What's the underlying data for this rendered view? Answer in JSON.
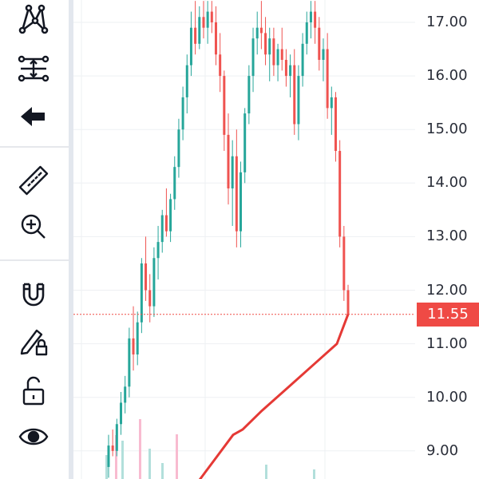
{
  "toolbar": {
    "groups": [
      [
        "pattern-tool-icon",
        "measure-settings-icon",
        "arrow-left-icon"
      ],
      [
        "ruler-icon",
        "zoom-in-icon"
      ],
      [
        "magnet-icon",
        "lock-drawings-icon",
        "unlock-icon",
        "eye-icon"
      ]
    ]
  },
  "price_axis": {
    "ticks": [
      "17.00",
      "16.00",
      "15.00",
      "14.00",
      "13.00",
      "12.00",
      "11.00",
      "10.00",
      "9.00"
    ],
    "current_price": "11.55"
  },
  "colors": {
    "up": "#26a69a",
    "down": "#ef5350",
    "line": "#e53935",
    "badge": "#ef4a45",
    "grid": "#eef0f3"
  },
  "chart_data": {
    "type": "candlestick",
    "y_range": [
      8.5,
      17.4
    ],
    "current_price": 11.55,
    "candles": [
      [
        8.7,
        9.3,
        8.5,
        9.1
      ],
      [
        9.1,
        9.4,
        8.9,
        9.0
      ],
      [
        9.0,
        9.6,
        8.9,
        9.5
      ],
      [
        9.5,
        10.1,
        9.3,
        9.9
      ],
      [
        9.9,
        10.4,
        9.7,
        10.2
      ],
      [
        10.2,
        11.3,
        10.0,
        11.1
      ],
      [
        11.1,
        11.7,
        10.5,
        10.8
      ],
      [
        10.8,
        11.6,
        10.6,
        11.4
      ],
      [
        11.4,
        12.6,
        11.2,
        12.5
      ],
      [
        12.5,
        13.0,
        11.8,
        12.0
      ],
      [
        12.0,
        12.3,
        11.4,
        11.7
      ],
      [
        11.7,
        12.8,
        11.5,
        12.6
      ],
      [
        12.6,
        13.2,
        12.2,
        12.9
      ],
      [
        12.9,
        13.5,
        12.7,
        13.4
      ],
      [
        13.4,
        13.9,
        13.0,
        13.1
      ],
      [
        13.1,
        13.8,
        12.9,
        13.7
      ],
      [
        13.7,
        14.5,
        13.5,
        14.3
      ],
      [
        14.3,
        15.2,
        14.1,
        15.0
      ],
      [
        15.0,
        15.8,
        14.8,
        15.6
      ],
      [
        15.6,
        16.4,
        15.3,
        16.2
      ],
      [
        16.2,
        17.2,
        16.0,
        16.9
      ],
      [
        16.9,
        17.4,
        16.4,
        16.6
      ],
      [
        16.6,
        17.3,
        16.5,
        17.1
      ],
      [
        17.1,
        17.4,
        16.7,
        16.9
      ],
      [
        16.9,
        17.4,
        16.6,
        17.2
      ],
      [
        17.2,
        17.4,
        16.8,
        17.0
      ],
      [
        17.0,
        17.3,
        16.2,
        16.4
      ],
      [
        16.4,
        16.8,
        15.7,
        16.0
      ],
      [
        16.0,
        16.1,
        14.6,
        14.9
      ],
      [
        14.9,
        15.3,
        13.6,
        13.9
      ],
      [
        13.9,
        14.8,
        13.2,
        14.5
      ],
      [
        14.5,
        15.0,
        12.8,
        13.1
      ],
      [
        13.1,
        14.4,
        12.8,
        14.2
      ],
      [
        14.2,
        15.4,
        14.0,
        15.3
      ],
      [
        15.3,
        16.2,
        15.1,
        16.0
      ],
      [
        16.0,
        16.9,
        15.7,
        16.7
      ],
      [
        16.7,
        17.2,
        16.4,
        16.9
      ],
      [
        16.9,
        17.4,
        16.5,
        16.8
      ],
      [
        16.8,
        17.1,
        16.2,
        16.4
      ],
      [
        16.4,
        16.9,
        15.9,
        16.7
      ],
      [
        16.7,
        16.9,
        16.0,
        16.2
      ],
      [
        16.2,
        16.6,
        15.9,
        16.5
      ],
      [
        16.5,
        16.9,
        16.1,
        16.3
      ],
      [
        16.3,
        16.5,
        15.8,
        16.0
      ],
      [
        16.0,
        16.4,
        15.6,
        16.2
      ],
      [
        16.2,
        16.5,
        14.9,
        15.1
      ],
      [
        15.1,
        16.2,
        14.8,
        16.0
      ],
      [
        16.0,
        16.8,
        15.8,
        16.6
      ],
      [
        16.6,
        17.2,
        16.4,
        17.0
      ],
      [
        17.0,
        17.4,
        16.7,
        17.2
      ],
      [
        17.2,
        17.4,
        16.6,
        16.9
      ],
      [
        16.9,
        17.1,
        16.1,
        16.3
      ],
      [
        16.3,
        16.7,
        15.9,
        16.5
      ],
      [
        16.5,
        16.8,
        15.2,
        15.4
      ],
      [
        15.4,
        15.8,
        14.9,
        15.6
      ],
      [
        15.6,
        15.7,
        14.4,
        14.6
      ],
      [
        14.6,
        14.8,
        12.8,
        13.0
      ],
      [
        13.0,
        13.2,
        11.8,
        12.0
      ],
      [
        12.0,
        12.1,
        11.5,
        11.55
      ]
    ],
    "line": {
      "start_price": 8.3,
      "end_price": 11.55
    }
  }
}
